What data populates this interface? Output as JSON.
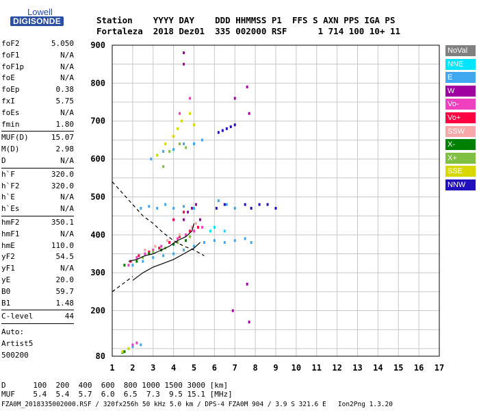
{
  "logo": {
    "line1": "Lowell",
    "line2": "DIGISONDE"
  },
  "header": {
    "line1": "Station    YYYY DAY    DDD HHMMSS P1  FFS S AXN PPS IGA PS",
    "line2": "Fortaleza  2018 Dez01  335 002000 RSF      1 714 100 10+ 11"
  },
  "params": [
    {
      "name": "foF2",
      "value": "5.050"
    },
    {
      "name": "foF1",
      "value": "N/A"
    },
    {
      "name": "foF1p",
      "value": "N/A"
    },
    {
      "name": "foE",
      "value": "N/A"
    },
    {
      "name": "foEp",
      "value": "0.38"
    },
    {
      "name": "fxI",
      "value": "5.75"
    },
    {
      "name": "foEs",
      "value": "N/A"
    },
    {
      "name": "fmin",
      "value": "1.80"
    },
    {
      "sep": true
    },
    {
      "name": "MUF(D)",
      "value": "15.07"
    },
    {
      "name": "M(D)",
      "value": "2.98"
    },
    {
      "name": "D",
      "value": "N/A"
    },
    {
      "sep": true
    },
    {
      "name": "h`F",
      "value": "320.0"
    },
    {
      "name": "h`F2",
      "value": "320.0"
    },
    {
      "name": "h`E",
      "value": "N/A"
    },
    {
      "name": "h`Es",
      "value": "N/A"
    },
    {
      "sep": true
    },
    {
      "name": "hmF2",
      "value": "350.1"
    },
    {
      "name": "hmF1",
      "value": "N/A"
    },
    {
      "name": "hmE",
      "value": "110.0"
    },
    {
      "name": "yF2",
      "value": "54.5"
    },
    {
      "name": "yF1",
      "value": "N/A"
    },
    {
      "name": "yE",
      "value": "20.0"
    },
    {
      "name": "B0",
      "value": "59.7"
    },
    {
      "name": "B1",
      "value": "1.48"
    },
    {
      "sep": true
    },
    {
      "name": "C-level",
      "value": "44"
    },
    {
      "sep": true
    }
  ],
  "auto": {
    "line1": "Auto:",
    "line2": "Artist5",
    "line3": "500200"
  },
  "muf_table": {
    "d_line": "D      100  200  400  600  800 1000 1500 3000 [km]",
    "muf_line": "MUF    5.4  5.4  5.7  6.0  6.5  7.3  9.5 15.1 [MHz]"
  },
  "footer": "FZA0M_2018335002000.RSF / 320fx256h 50 kHz 5.0 km / DPS-4 FZA0M 904 / 3.9 S 321.6 E   Ion2Png 1.3.20",
  "legend": [
    {
      "label": "NoVal",
      "color": "#808080"
    },
    {
      "label": "NNE",
      "color": "#00e5ff"
    },
    {
      "label": "E",
      "color": "#40a8f0"
    },
    {
      "label": "W",
      "color": "#a000a0"
    },
    {
      "label": "Vo-",
      "color": "#f040c0"
    },
    {
      "label": "Vo+",
      "color": "#ff0040"
    },
    {
      "label": "SSW",
      "color": "#f8a8a8"
    },
    {
      "label": "X-",
      "color": "#008000"
    },
    {
      "label": "X+",
      "color": "#80c040"
    },
    {
      "label": "SSE",
      "color": "#d8d800"
    },
    {
      "label": "NNW",
      "color": "#2010c0"
    }
  ],
  "chart_data": {
    "type": "scatter",
    "xlim": [
      1,
      17
    ],
    "ylim": [
      80,
      900
    ],
    "x_ticks": [
      1,
      2,
      3,
      4,
      5,
      6,
      7,
      8,
      9,
      10,
      11,
      12,
      13,
      14,
      15,
      16,
      17
    ],
    "y_ticks": [
      100,
      200,
      300,
      400,
      500,
      600,
      700,
      800,
      900
    ],
    "y_tick_labels_shown": [
      80,
      200,
      300,
      400,
      500,
      600,
      700,
      800,
      900
    ],
    "grid": true,
    "series": [
      {
        "name": "E",
        "color": "#40a8f0",
        "points": [
          [
            2.0,
            320
          ],
          [
            2.5,
            330
          ],
          [
            3.0,
            340
          ],
          [
            3.5,
            345
          ],
          [
            4.0,
            350
          ],
          [
            4.5,
            360
          ],
          [
            5.0,
            370
          ],
          [
            5.5,
            380
          ],
          [
            6.0,
            385
          ],
          [
            6.5,
            380
          ],
          [
            7.0,
            385
          ],
          [
            7.5,
            390
          ],
          [
            7.8,
            380
          ],
          [
            2.4,
            470
          ],
          [
            2.8,
            475
          ],
          [
            3.2,
            470
          ],
          [
            3.6,
            480
          ],
          [
            4.0,
            470
          ],
          [
            4.5,
            475
          ],
          [
            5.0,
            470
          ],
          [
            6.2,
            490
          ],
          [
            6.6,
            480
          ],
          [
            7.0,
            470
          ],
          [
            2.9,
            600
          ],
          [
            3.2,
            610
          ],
          [
            3.5,
            620
          ],
          [
            4.0,
            625
          ],
          [
            4.5,
            640
          ],
          [
            5.0,
            640
          ],
          [
            5.4,
            650
          ],
          [
            1.8,
            100
          ],
          [
            2.0,
            105
          ],
          [
            2.4,
            110
          ]
        ]
      },
      {
        "name": "Vo-",
        "color": "#f040c0",
        "points": [
          [
            1.8,
            320
          ],
          [
            2.2,
            340
          ],
          [
            2.6,
            350
          ],
          [
            3.0,
            360
          ],
          [
            3.4,
            370
          ],
          [
            3.8,
            380
          ],
          [
            4.2,
            390
          ],
          [
            4.6,
            400
          ],
          [
            5.0,
            410
          ],
          [
            5.4,
            420
          ],
          [
            2.0,
            110
          ],
          [
            2.2,
            115
          ],
          [
            4.8,
            760
          ],
          [
            4.3,
            720
          ]
        ]
      },
      {
        "name": "Vo+",
        "color": "#ff0040",
        "points": [
          [
            1.9,
            330
          ],
          [
            2.3,
            345
          ],
          [
            2.8,
            355
          ],
          [
            3.3,
            365
          ],
          [
            3.8,
            380
          ],
          [
            4.3,
            395
          ],
          [
            4.8,
            410
          ],
          [
            5.2,
            420
          ],
          [
            4.0,
            440
          ],
          [
            4.5,
            460
          ]
        ]
      },
      {
        "name": "W",
        "color": "#a000a0",
        "points": [
          [
            4.5,
            440
          ],
          [
            4.7,
            460
          ],
          [
            4.9,
            470
          ],
          [
            5.1,
            480
          ],
          [
            5.3,
            440
          ],
          [
            7.6,
            790
          ],
          [
            7.7,
            720
          ],
          [
            7.0,
            760
          ],
          [
            4.5,
            880
          ],
          [
            4.5,
            850
          ],
          [
            7.6,
            270
          ],
          [
            7.7,
            170
          ],
          [
            6.9,
            200
          ]
        ]
      },
      {
        "name": "NNW",
        "color": "#2010c0",
        "points": [
          [
            6.2,
            670
          ],
          [
            6.4,
            675
          ],
          [
            6.6,
            680
          ],
          [
            6.8,
            685
          ],
          [
            7.0,
            690
          ],
          [
            6.1,
            470
          ],
          [
            6.5,
            480
          ],
          [
            7.5,
            480
          ],
          [
            7.8,
            470
          ],
          [
            8.2,
            480
          ],
          [
            8.6,
            480
          ],
          [
            9.0,
            470
          ]
        ]
      },
      {
        "name": "X-",
        "color": "#008000",
        "points": [
          [
            1.6,
            320
          ],
          [
            2.2,
            330
          ],
          [
            2.8,
            350
          ],
          [
            3.4,
            360
          ],
          [
            4.0,
            375
          ],
          [
            4.6,
            385
          ],
          [
            1.5,
            90
          ],
          [
            1.6,
            92
          ]
        ]
      },
      {
        "name": "X+",
        "color": "#80c040",
        "points": [
          [
            2.5,
            340
          ],
          [
            3.0,
            355
          ],
          [
            3.6,
            365
          ],
          [
            4.2,
            380
          ],
          [
            4.8,
            395
          ],
          [
            3.5,
            580
          ],
          [
            3.8,
            620
          ],
          [
            4.3,
            640
          ],
          [
            4.6,
            630
          ]
        ]
      },
      {
        "name": "SSE",
        "color": "#d8d800",
        "points": [
          [
            3.2,
            610
          ],
          [
            3.6,
            640
          ],
          [
            4.0,
            660
          ],
          [
            4.4,
            700
          ],
          [
            4.8,
            720
          ],
          [
            5.0,
            690
          ],
          [
            4.2,
            680
          ],
          [
            1.5,
            92
          ],
          [
            1.8,
            100
          ]
        ]
      },
      {
        "name": "SSW",
        "color": "#f8a8a8",
        "points": [
          [
            2.6,
            360
          ],
          [
            3.1,
            370
          ],
          [
            3.7,
            385
          ],
          [
            4.3,
            400
          ],
          [
            4.9,
            420
          ],
          [
            5.1,
            430
          ]
        ]
      },
      {
        "name": "NNE",
        "color": "#00e5ff",
        "points": [
          [
            5.8,
            410
          ],
          [
            6.0,
            420
          ],
          [
            6.5,
            410
          ]
        ]
      }
    ],
    "curves": [
      {
        "style": "dashed",
        "points": [
          [
            1,
            540
          ],
          [
            1.5,
            510
          ],
          [
            2,
            480
          ],
          [
            2.5,
            450
          ],
          [
            3,
            430
          ],
          [
            3.5,
            405
          ],
          [
            4,
            385
          ],
          [
            4.5,
            370
          ],
          [
            5,
            360
          ],
          [
            5.5,
            345
          ]
        ]
      },
      {
        "style": "dashed",
        "points": [
          [
            1,
            250
          ],
          [
            1.5,
            270
          ],
          [
            2,
            290
          ]
        ]
      },
      {
        "style": "solid",
        "points": [
          [
            2,
            280
          ],
          [
            2.5,
            300
          ],
          [
            3,
            315
          ],
          [
            3.5,
            325
          ],
          [
            4,
            335
          ],
          [
            4.5,
            350
          ],
          [
            5,
            365
          ],
          [
            5.3,
            380
          ]
        ]
      },
      {
        "style": "solid",
        "points": [
          [
            1.8,
            330
          ],
          [
            2.2,
            335
          ],
          [
            2.6,
            345
          ],
          [
            3.0,
            350
          ],
          [
            3.4,
            360
          ],
          [
            3.8,
            370
          ],
          [
            4.2,
            385
          ],
          [
            4.6,
            395
          ],
          [
            4.9,
            410
          ],
          [
            5.0,
            430
          ]
        ]
      }
    ]
  }
}
